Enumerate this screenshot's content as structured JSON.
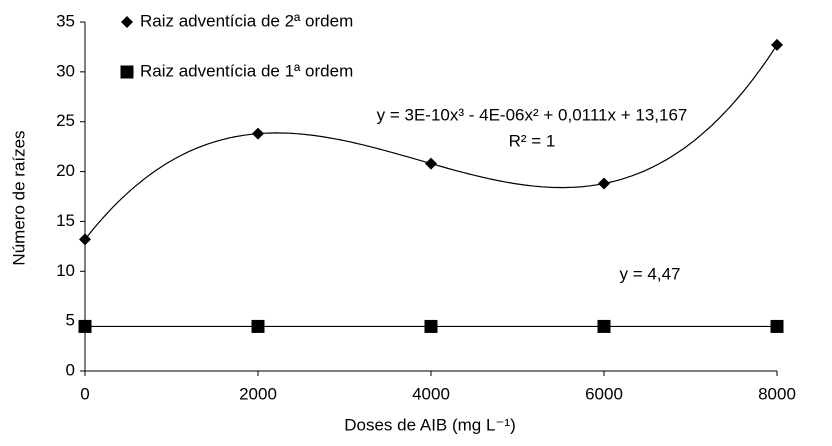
{
  "chart_data": {
    "type": "scatter",
    "x_label": "Doses de AIB (mg L⁻¹)",
    "y_label": "Número de raízes",
    "x": [
      0,
      2000,
      4000,
      6000,
      8000
    ],
    "series": [
      {
        "name": "Raiz adventícia de 2ª ordem",
        "color": "#000000",
        "marker": "diamond",
        "trend": "curve",
        "values": [
          13.2,
          23.8,
          20.8,
          18.8,
          32.7
        ]
      },
      {
        "name": "Raiz adventícia de 1ª ordem",
        "color": "#000000",
        "marker": "square",
        "trend": "line",
        "values": [
          4.47,
          4.47,
          4.47,
          4.47,
          4.47
        ]
      }
    ],
    "annotations": [
      "y = 3E-10x³ - 4E-06x² + 0,0111x + 13,167",
      "R² = 1",
      "y = 4,47"
    ],
    "xlim": [
      0,
      8000
    ],
    "xticks": [
      0,
      2000,
      4000,
      6000,
      8000
    ],
    "ylim": [
      0,
      35
    ],
    "yticks": [
      0,
      5,
      10,
      15,
      20,
      25,
      30,
      35
    ],
    "grid": false,
    "legend": "upper left"
  }
}
